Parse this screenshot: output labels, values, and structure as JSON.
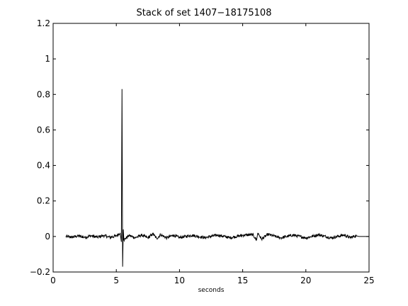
{
  "chart_data": {
    "type": "line",
    "title": "Stack of set 1407−18175108",
    "xlabel": "seconds",
    "ylabel": "",
    "xlim": [
      0,
      25
    ],
    "ylim": [
      -0.2,
      1.2
    ],
    "xticks": [
      0,
      5,
      10,
      15,
      20,
      25
    ],
    "xtick_labels": [
      "0",
      "5",
      "10",
      "15",
      "20",
      "25"
    ],
    "yticks": [
      -0.2,
      0,
      0.2,
      0.4,
      0.6,
      0.8,
      1,
      1.2
    ],
    "ytick_labels": [
      "−0.2",
      "0",
      "0.2",
      "0.4",
      "0.6",
      "0.8",
      "1",
      "1.2"
    ],
    "grid": false,
    "series": [
      {
        "color": "#000000",
        "points": [
          [
            1.0,
            0.0
          ],
          [
            1.5,
            -0.004
          ],
          [
            2.0,
            0.003
          ],
          [
            2.5,
            -0.005
          ],
          [
            3.0,
            0.004
          ],
          [
            3.5,
            -0.004
          ],
          [
            4.0,
            0.005
          ],
          [
            4.5,
            -0.005
          ],
          [
            5.0,
            0.004
          ],
          [
            5.3,
            0.02
          ],
          [
            5.4,
            -0.03
          ],
          [
            5.45,
            0.83
          ],
          [
            5.5,
            -0.17
          ],
          [
            5.55,
            0.04
          ],
          [
            5.6,
            -0.02
          ],
          [
            6.0,
            0.006
          ],
          [
            6.5,
            -0.007
          ],
          [
            7.0,
            0.008
          ],
          [
            7.5,
            -0.008
          ],
          [
            7.9,
            0.015
          ],
          [
            8.2,
            -0.012
          ],
          [
            8.5,
            0.01
          ],
          [
            9.0,
            -0.008
          ],
          [
            9.5,
            0.007
          ],
          [
            10.0,
            -0.006
          ],
          [
            11.0,
            0.007
          ],
          [
            12.0,
            -0.007
          ],
          [
            13.0,
            0.008
          ],
          [
            14.0,
            -0.007
          ],
          [
            15.0,
            0.007
          ],
          [
            15.8,
            0.01
          ],
          [
            16.1,
            -0.02
          ],
          [
            16.2,
            0.02
          ],
          [
            16.5,
            -0.015
          ],
          [
            17.0,
            0.012
          ],
          [
            18.0,
            -0.008
          ],
          [
            19.0,
            0.008
          ],
          [
            20.0,
            -0.008
          ],
          [
            21.0,
            0.01
          ],
          [
            22.0,
            -0.008
          ],
          [
            23.0,
            0.008
          ],
          [
            23.5,
            -0.006
          ],
          [
            24.0,
            0.004
          ],
          [
            24.2,
            0.0
          ]
        ],
        "baseline_start": 24.2,
        "baseline_end": 25.0,
        "noise_amplitude": 0.008
      }
    ]
  }
}
